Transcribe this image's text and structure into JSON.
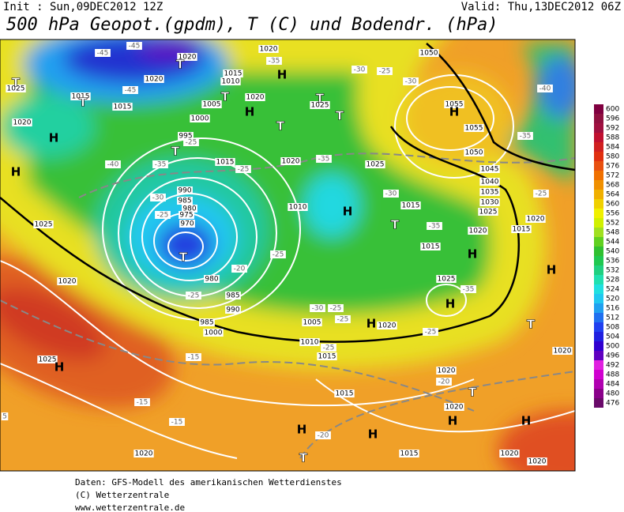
{
  "header": {
    "init": "Init : Sun,09DEC2012 12Z",
    "valid": "Valid: Thu,13DEC2012 06Z",
    "title": "500 hPa Geopot.(gpdm), T (C) und Bodendr. (hPa)"
  },
  "map": {
    "pressure_labels": [
      "1020",
      "1020",
      "1050",
      "1025",
      "1015",
      "1020",
      "1015",
      "1015",
      "1010",
      "1005",
      "1020",
      "1025",
      "1055",
      "1000",
      "1020",
      "995",
      "1055",
      "1050",
      "1015",
      "1020",
      "1025",
      "1045",
      "1040",
      "990",
      "1035",
      "1030",
      "985",
      "980",
      "975",
      "970",
      "1010",
      "1015",
      "1025",
      "1020",
      "1025",
      "1020",
      "1015",
      "1015",
      "1025",
      "980",
      "1020",
      "985",
      "990",
      "1005",
      "985",
      "1000",
      "1020",
      "1010",
      "1015",
      "1020",
      "1025",
      "1020",
      "1015",
      "1020",
      "1020",
      "1015",
      "1020",
      "1020"
    ],
    "temperature_labels": [
      "-45",
      "-45",
      "-35",
      "-30",
      "-25",
      "-30",
      "-40",
      "-45",
      "-25",
      "-35",
      "-40",
      "-35",
      "-25",
      "-35",
      "-30",
      "-25",
      "-30",
      "-25",
      "-35",
      "-25",
      "-20",
      "-35",
      "-25",
      "-30",
      "-25",
      "-25",
      "-25",
      "-25",
      "-15",
      "-20",
      "-15",
      "-15",
      "-20",
      "5"
    ],
    "highs": [
      "H",
      "H",
      "H",
      "H",
      "H",
      "H",
      "H",
      "H",
      "H",
      "H",
      "H",
      "H",
      "H",
      "H",
      "H"
    ],
    "lows": [
      "T",
      "T",
      "T",
      "T",
      "T",
      "T",
      "T",
      "T",
      "T",
      "T",
      "T",
      "T",
      "T"
    ]
  },
  "colorbar": {
    "ticks": [
      600,
      596,
      592,
      588,
      584,
      580,
      576,
      572,
      568,
      564,
      560,
      556,
      552,
      548,
      544,
      540,
      536,
      532,
      528,
      524,
      520,
      516,
      512,
      508,
      504,
      500,
      496,
      492,
      488,
      484,
      480,
      476
    ],
    "colors": [
      "#800040",
      "#901040",
      "#a01040",
      "#c01030",
      "#d02020",
      "#e03010",
      "#e85010",
      "#f07000",
      "#f09000",
      "#f0b000",
      "#f0d000",
      "#f0f000",
      "#d0f000",
      "#a0e020",
      "#60d020",
      "#30c030",
      "#20c850",
      "#20d080",
      "#20e0b0",
      "#20e0e0",
      "#20c8f0",
      "#20a0f0",
      "#2070f0",
      "#2040f0",
      "#2020e0",
      "#3000d0",
      "#6000c0",
      "#e020e0",
      "#d000d0",
      "#b000b0",
      "#8a008a",
      "#6a0a6a"
    ]
  },
  "footer": [
    "Daten: GFS-Modell des amerikanischen Wetterdienstes",
    "(C) Wetterzentrale",
    "www.wetterzentrale.de"
  ]
}
